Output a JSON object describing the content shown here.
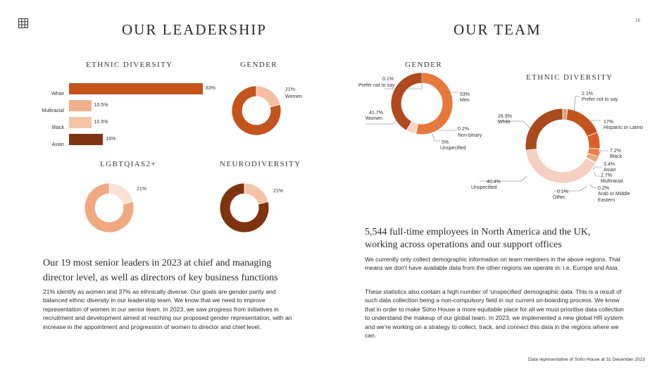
{
  "page_number": "16",
  "left": {
    "title": "OUR LEADERSHIP",
    "lead": "Our 19 most senior leaders in 2023 at chief and managing director level, as well as directors of key business functions",
    "body": "21% identify as women and 37% as ethnically diverse. Our goals are gender parity and balanced ethnic diversity in our leadership team.  We know that we need to improve representation of women in our senior team.  In 2023, we saw progress from initiatives in recruitment and development aimed at reaching our proposed gender representation, with an increase in the appointment and progression of women to director and chief level."
  },
  "right": {
    "title": "OUR TEAM",
    "lead": "5,544 full-time employees in North America and the UK, working across operations and our support offices",
    "body1": "We currently only collect demographic information on team members in the above regions. That means we don't have available data from the other regions we operate in: i.e. Europe and Asia.",
    "body2": "These statistics also contain a high number of 'unspecified' demographic data. This is a result of such data collection being a non-compulsory field in our current on-boarding process. We know that in order to make Soho House a more equitable place for all we must prioritise data collection to understand the makeup of our global team. In 2023, we implemented a new global HR system and we're working on a strategy to collect, track, and connect this data in the regions where we can."
  },
  "footnote": "Data representative of Soho House at 31 December 2023",
  "icons": {
    "menu": "grid-icon"
  },
  "colors": {
    "dark": "#7f3410",
    "rust": "#c4531c",
    "orange": "#e8793c",
    "peach": "#f0a980",
    "salmon": "#f5bfa4",
    "blush": "#f7d5c4",
    "pale": "#f9e4d8"
  },
  "chart_data": [
    {
      "id": "leadership-ethnic",
      "type": "bar",
      "title": "ETHNIC DIVERSITY",
      "categories": [
        "White",
        "Multiracial",
        "Black",
        "Asian"
      ],
      "values": [
        63,
        10.5,
        10.5,
        16
      ],
      "value_labels": [
        "63%",
        "10.5%",
        "10.5%",
        "16%"
      ],
      "colors": [
        "#c4531c",
        "#f0b08e",
        "#f5c3a8",
        "#7f3410"
      ],
      "xlim": [
        0,
        63
      ]
    },
    {
      "id": "leadership-gender",
      "type": "pie",
      "title": "GENDER",
      "slices": [
        {
          "name": "Women",
          "value": 21,
          "label": "21%",
          "color": "#f5bfa4"
        },
        {
          "name": "",
          "value": 79,
          "label": "",
          "color": "#c4531c"
        }
      ]
    },
    {
      "id": "leadership-lgbtq",
      "type": "pie",
      "title": "LGBTQIAS2+",
      "slices": [
        {
          "name": "",
          "value": 21,
          "label": "21%",
          "color": "#f9e1d4"
        },
        {
          "name": "",
          "value": 79,
          "label": "",
          "color": "#f0a980"
        }
      ]
    },
    {
      "id": "leadership-neuro",
      "type": "pie",
      "title": "NEURODIVERSITY",
      "slices": [
        {
          "name": "",
          "value": 21,
          "label": "21%",
          "color": "#f5c3a8"
        },
        {
          "name": "",
          "value": 79,
          "label": "",
          "color": "#7f3410"
        }
      ]
    },
    {
      "id": "team-gender",
      "type": "pie",
      "title": "GENDER",
      "slices": [
        {
          "name": "Prefer not to say",
          "value": 0.1,
          "label": "0.1%",
          "color": "#7f3410"
        },
        {
          "name": "Men",
          "value": 53,
          "label": "53%",
          "color": "#e8793c"
        },
        {
          "name": "Non-binary",
          "value": 0.2,
          "label": "0.2%",
          "color": "#f0a980"
        },
        {
          "name": "Unspecified",
          "value": 5,
          "label": "5%",
          "color": "#f7d5c4"
        },
        {
          "name": "Women",
          "value": 41.7,
          "label": "41.7%",
          "color": "#b04a1d"
        }
      ]
    },
    {
      "id": "team-ethnic",
      "type": "pie",
      "title": "ETHNIC DIVERSITY",
      "slices": [
        {
          "name": "Prefer not to say",
          "value": 2.1,
          "label": "2.1%",
          "color": "#e0a07a"
        },
        {
          "name": "Hispanic or Latino",
          "value": 17,
          "label": "17%",
          "color": "#c4531c"
        },
        {
          "name": "Black",
          "value": 7.2,
          "label": "7.2%",
          "color": "#d9602a"
        },
        {
          "name": "Asian",
          "value": 3.4,
          "label": "3.4%",
          "color": "#ef7f48"
        },
        {
          "name": "Multiracial",
          "value": 2.7,
          "label": "2.7%",
          "color": "#f2a37c"
        },
        {
          "name": "Arab or Middle Eastern",
          "value": 0.2,
          "label": "0.2%",
          "color": "#e9b392"
        },
        {
          "name": "Other",
          "value": 0.1,
          "label": "0.1%",
          "color": "#f2c6ae"
        },
        {
          "name": "Unspecified",
          "value": 40.4,
          "label": "40.4%",
          "color": "#f5cfc2"
        },
        {
          "name": "White",
          "value": 26.9,
          "label": "26.9%",
          "color": "#a94a1f"
        }
      ]
    }
  ]
}
